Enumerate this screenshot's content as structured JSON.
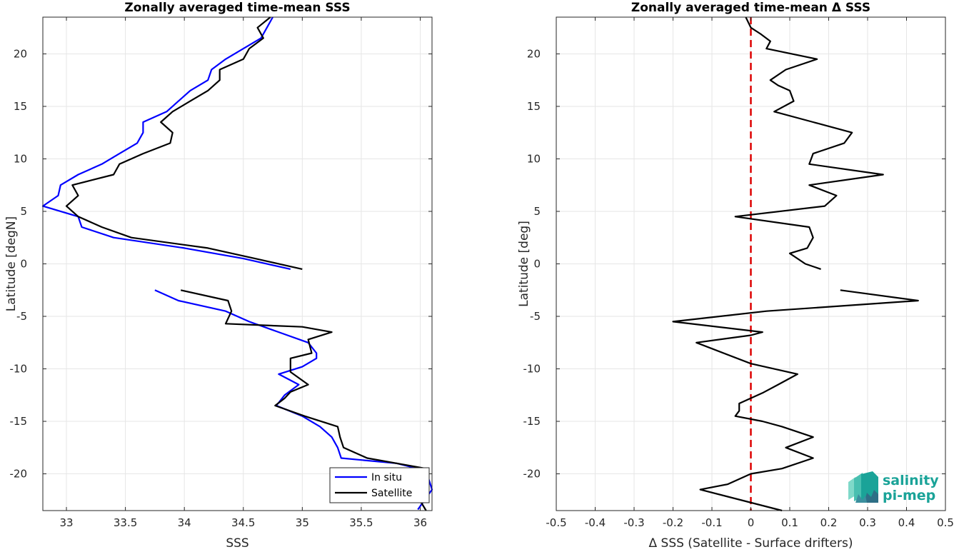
{
  "chart_data": [
    {
      "type": "line",
      "title": "Zonally averaged time-mean SSS",
      "xlabel": "SSS",
      "ylabel": "Latitude [degN]",
      "xlim": [
        32.8,
        36.1
      ],
      "ylim": [
        -23.5,
        23.5
      ],
      "xticks": [
        33,
        33.5,
        34,
        34.5,
        35,
        35.5,
        36
      ],
      "xtick_labels": [
        "33",
        "33.5",
        "34",
        "34.5",
        "35",
        "35.5",
        "36"
      ],
      "yticks": [
        -20,
        -15,
        -10,
        -5,
        0,
        5,
        10,
        15,
        20
      ],
      "ytick_labels": [
        "-20",
        "-15",
        "-10",
        "-5",
        "0",
        "5",
        "10",
        "15",
        "20"
      ],
      "grid": true,
      "legend_location": "bottom-right",
      "series": [
        {
          "name": "In situ",
          "color": "#0000ff",
          "segments": [
            [
              [
                34.75,
                23.5
              ],
              [
                34.7,
                22.5
              ],
              [
                34.65,
                21.5
              ],
              [
                34.5,
                20.5
              ],
              [
                34.35,
                19.5
              ],
              [
                34.23,
                18.5
              ],
              [
                34.2,
                17.5
              ],
              [
                34.05,
                16.5
              ],
              [
                33.95,
                15.5
              ],
              [
                33.85,
                14.5
              ],
              [
                33.65,
                13.5
              ],
              [
                33.65,
                12.5
              ],
              [
                33.6,
                11.5
              ],
              [
                33.45,
                10.5
              ],
              [
                33.3,
                9.5
              ],
              [
                33.1,
                8.5
              ],
              [
                32.95,
                7.5
              ],
              [
                32.93,
                6.5
              ],
              [
                32.8,
                5.5
              ],
              [
                33.1,
                4.5
              ],
              [
                33.13,
                3.5
              ],
              [
                33.4,
                2.5
              ],
              [
                34.0,
                1.5
              ],
              [
                34.5,
                0.5
              ],
              [
                34.9,
                -0.5
              ]
            ],
            [
              [
                33.75,
                -2.5
              ],
              [
                33.95,
                -3.5
              ],
              [
                34.35,
                -4.5
              ],
              [
                34.55,
                -5.5
              ],
              [
                34.8,
                -6.5
              ],
              [
                35.05,
                -7.5
              ],
              [
                35.12,
                -8.5
              ],
              [
                35.12,
                -9.0
              ],
              [
                35.0,
                -9.8
              ],
              [
                34.8,
                -10.5
              ],
              [
                34.97,
                -11.5
              ],
              [
                34.85,
                -12.5
              ],
              [
                34.78,
                -13.5
              ],
              [
                35.0,
                -14.5
              ],
              [
                35.15,
                -15.5
              ],
              [
                35.25,
                -16.5
              ],
              [
                35.3,
                -17.5
              ],
              [
                35.33,
                -18.5
              ],
              [
                35.8,
                -19.0
              ],
              [
                36.05,
                -19.7
              ],
              [
                36.1,
                -21.5
              ],
              [
                35.98,
                -23.4
              ]
            ]
          ]
        },
        {
          "name": "Satellite",
          "color": "#000000",
          "segments": [
            [
              [
                34.73,
                23.5
              ],
              [
                34.62,
                22.5
              ],
              [
                34.67,
                21.5
              ],
              [
                34.55,
                20.5
              ],
              [
                34.5,
                19.5
              ],
              [
                34.3,
                18.5
              ],
              [
                34.3,
                17.5
              ],
              [
                34.2,
                16.5
              ],
              [
                34.05,
                15.5
              ],
              [
                33.9,
                14.5
              ],
              [
                33.8,
                13.5
              ],
              [
                33.9,
                12.5
              ],
              [
                33.88,
                11.5
              ],
              [
                33.65,
                10.5
              ],
              [
                33.45,
                9.5
              ],
              [
                33.4,
                8.5
              ],
              [
                33.05,
                7.5
              ],
              [
                33.1,
                6.5
              ],
              [
                33.0,
                5.5
              ],
              [
                33.1,
                4.5
              ],
              [
                33.3,
                3.5
              ],
              [
                33.55,
                2.5
              ],
              [
                34.2,
                1.5
              ],
              [
                34.6,
                0.5
              ],
              [
                35.0,
                -0.5
              ]
            ],
            [
              [
                33.97,
                -2.5
              ],
              [
                34.37,
                -3.5
              ],
              [
                34.4,
                -4.5
              ],
              [
                34.35,
                -5.7
              ],
              [
                35.0,
                -6.0
              ],
              [
                35.25,
                -6.5
              ],
              [
                35.05,
                -7.2
              ],
              [
                35.08,
                -8.5
              ],
              [
                34.9,
                -9.0
              ],
              [
                34.9,
                -10.3
              ],
              [
                35.05,
                -11.5
              ],
              [
                34.9,
                -12.2
              ],
              [
                34.85,
                -12.8
              ],
              [
                34.77,
                -13.5
              ],
              [
                35.02,
                -14.5
              ],
              [
                35.3,
                -15.5
              ],
              [
                35.32,
                -16.5
              ],
              [
                35.35,
                -17.5
              ],
              [
                35.55,
                -18.5
              ],
              [
                36.05,
                -19.5
              ],
              [
                35.98,
                -20.5
              ],
              [
                36.05,
                -21.2
              ],
              [
                35.97,
                -22.0
              ],
              [
                36.05,
                -23.5
              ]
            ]
          ]
        }
      ]
    },
    {
      "type": "line",
      "title": "Zonally averaged time-mean Δ SSS",
      "xlabel": "Δ SSS (Satellite - Surface drifters)",
      "ylabel": "Latitude [deg]",
      "xlim": [
        -0.5,
        0.5
      ],
      "ylim": [
        -23.5,
        23.5
      ],
      "xticks": [
        -0.5,
        -0.4,
        -0.3,
        -0.2,
        -0.1,
        0,
        0.1,
        0.2,
        0.3,
        0.4,
        0.5
      ],
      "xtick_labels": [
        "-0.5",
        "-0.4",
        "-0.3",
        "-0.2",
        "-0.1",
        "0",
        "0.1",
        "0.2",
        "0.3",
        "0.4",
        "0.5"
      ],
      "yticks": [
        -20,
        -15,
        -10,
        -5,
        0,
        5,
        10,
        15,
        20
      ],
      "ytick_labels": [
        "-20",
        "-15",
        "-10",
        "-5",
        "0",
        "5",
        "10",
        "15",
        "20"
      ],
      "grid": true,
      "reference_line": {
        "x": 0,
        "color": "#dd0000",
        "style": "dashed"
      },
      "series": [
        {
          "color": "#000000",
          "segments": [
            [
              [
                -0.013,
                23.5
              ],
              [
                0.0,
                22.5
              ],
              [
                0.025,
                21.9
              ],
              [
                0.05,
                21.2
              ],
              [
                0.04,
                20.5
              ],
              [
                0.17,
                19.5
              ],
              [
                0.09,
                18.5
              ],
              [
                0.05,
                17.5
              ],
              [
                0.07,
                17.0
              ],
              [
                0.1,
                16.5
              ],
              [
                0.11,
                15.5
              ],
              [
                0.06,
                14.5
              ],
              [
                0.16,
                13.5
              ],
              [
                0.26,
                12.5
              ],
              [
                0.24,
                11.5
              ],
              [
                0.16,
                10.5
              ],
              [
                0.15,
                9.5
              ],
              [
                0.34,
                8.5
              ],
              [
                0.15,
                7.5
              ],
              [
                0.22,
                6.5
              ],
              [
                0.19,
                5.5
              ],
              [
                -0.04,
                4.5
              ],
              [
                0.15,
                3.5
              ],
              [
                0.16,
                2.5
              ],
              [
                0.145,
                1.5
              ],
              [
                0.1,
                1.0
              ],
              [
                0.14,
                0.0
              ],
              [
                0.18,
                -0.5
              ]
            ],
            [
              [
                0.23,
                -2.5
              ],
              [
                0.43,
                -3.5
              ],
              [
                0.04,
                -4.5
              ],
              [
                -0.2,
                -5.5
              ],
              [
                0.03,
                -6.5
              ],
              [
                0.0,
                -6.8
              ],
              [
                -0.14,
                -7.5
              ],
              [
                0.0,
                -9.5
              ],
              [
                0.12,
                -10.5
              ],
              [
                0.07,
                -11.5
              ],
              [
                0.03,
                -12.3
              ],
              [
                -0.03,
                -13.3
              ],
              [
                -0.03,
                -14.0
              ],
              [
                -0.04,
                -14.5
              ],
              [
                0.03,
                -15.0
              ],
              [
                0.08,
                -15.5
              ],
              [
                0.16,
                -16.5
              ],
              [
                0.09,
                -17.5
              ],
              [
                0.16,
                -18.5
              ],
              [
                0.08,
                -19.5
              ],
              [
                0.0,
                -20.0
              ],
              [
                -0.06,
                -21.0
              ],
              [
                -0.13,
                -21.5
              ],
              [
                0.08,
                -23.5
              ]
            ]
          ]
        }
      ]
    }
  ],
  "legend": {
    "items": [
      {
        "label": "In situ",
        "color": "#0000ff"
      },
      {
        "label": "Satellite",
        "color": "#000000"
      }
    ]
  },
  "logo": {
    "line1": "salinity",
    "line2": "pi-mep",
    "colors": [
      "#1aa398",
      "#7fd9c9",
      "#2e6f86"
    ]
  }
}
